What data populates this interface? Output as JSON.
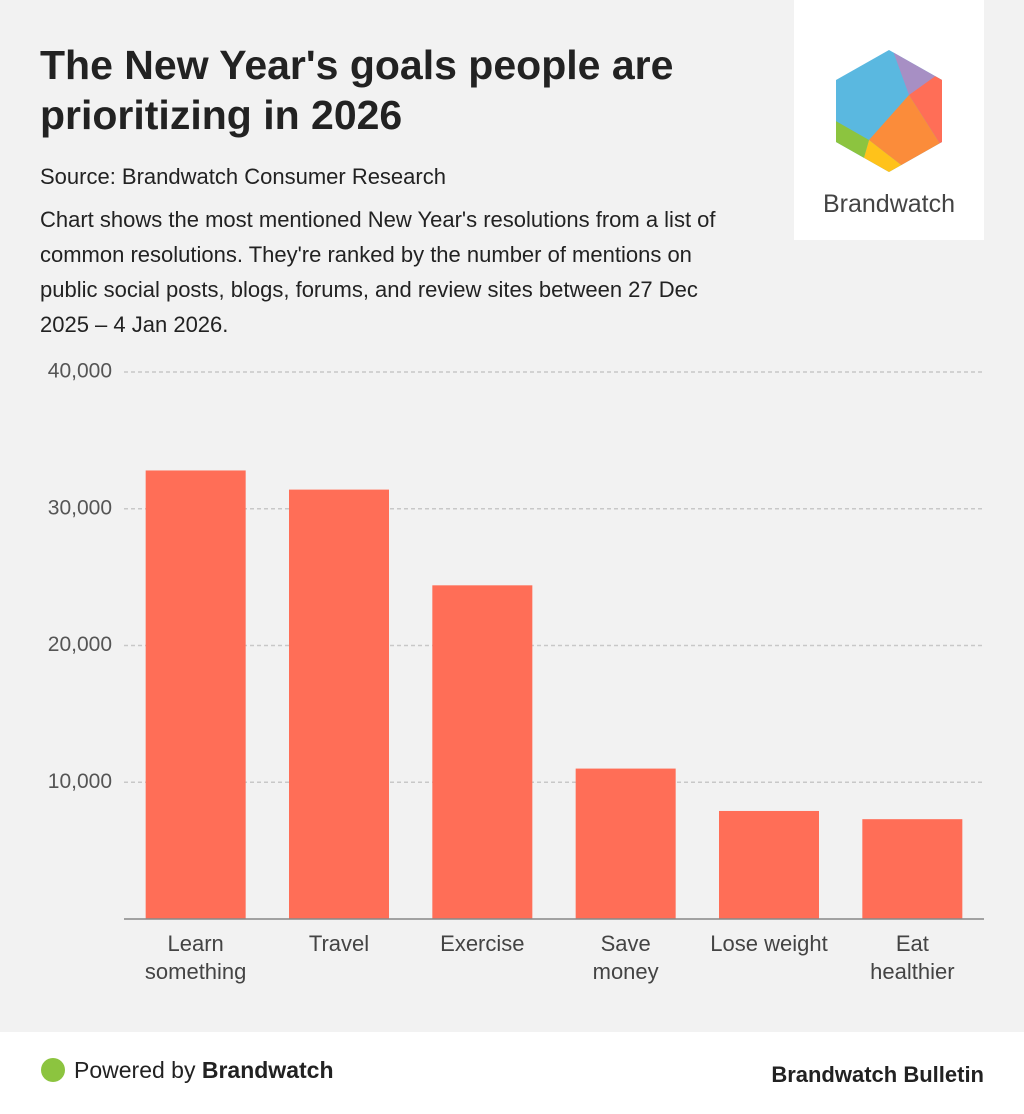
{
  "chart_data": {
    "type": "bar",
    "title": "The New Year's goals people are prioritizing in 2026",
    "subtitle": "Source: Brandwatch Consumer Research",
    "description": "Chart shows the most mentioned New Year's resolutions from a list of common resolutions. They're ranked by the number of mentions on public social posts, blogs, forums, and review sites between 27 Dec 2025 – 4 Jan 2026.",
    "categories": [
      "Learn\nsomething",
      "Travel",
      "Exercise",
      "Save\nmoney",
      "Lose weight",
      "Eat\nhealthier"
    ],
    "values": [
      32800,
      31400,
      24400,
      11000,
      7900,
      7300
    ],
    "color": "#ff6e57",
    "ylim": [
      0,
      40000
    ],
    "yticks": [
      {
        "value": 10000,
        "label": "10,000"
      },
      {
        "value": 20000,
        "label": "20,000"
      },
      {
        "value": 30000,
        "label": "30,000"
      },
      {
        "value": 40000,
        "label": "40,000"
      }
    ],
    "grid": true
  },
  "logo": {
    "text": "Brandwatch"
  },
  "footer": {
    "powered_prefix": "Powered by",
    "powered_brand": "Brandwatch",
    "publication": "Brandwatch Bulletin"
  }
}
